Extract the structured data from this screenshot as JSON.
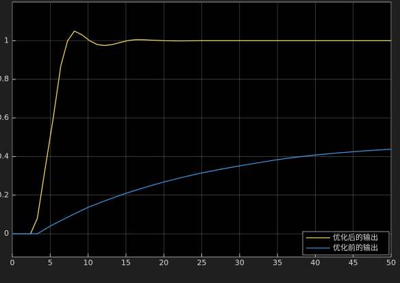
{
  "chart_data": {
    "type": "line",
    "xlim": [
      0,
      50
    ],
    "ylim": [
      -0.12,
      1.2
    ],
    "xticks": [
      0,
      5,
      10,
      15,
      20,
      25,
      30,
      35,
      40,
      45,
      50
    ],
    "yticks": [
      0,
      0.2,
      0.4,
      0.6,
      0.8,
      1
    ],
    "grid": true,
    "legend": "lower right",
    "series": [
      {
        "name": "优化后的输出",
        "color": "#edd55a",
        "x": [
          0,
          2.4,
          3.3,
          4.3,
          5.4,
          6.4,
          7.3,
          8.2,
          9.2,
          10.2,
          11.2,
          12.2,
          13.2,
          14.2,
          15.2,
          16.2,
          17.2,
          18.2,
          20,
          22,
          25,
          30,
          40,
          50
        ],
        "values": [
          0,
          0,
          0.08,
          0.33,
          0.6,
          0.87,
          1.0,
          1.05,
          1.03,
          1.0,
          0.98,
          0.975,
          0.98,
          0.99,
          1.0,
          1.005,
          1.005,
          1.003,
          1.0,
          0.999,
          1.0,
          1.0,
          1.0,
          1.0
        ]
      },
      {
        "name": "优化前的输出",
        "color": "#3d8fd9",
        "x": [
          0,
          3.3,
          5,
          7.5,
          10,
          12.5,
          15,
          17.5,
          20,
          22.5,
          25,
          27.5,
          30,
          32.5,
          35,
          37.5,
          40,
          42.5,
          45,
          47.5,
          50
        ],
        "values": [
          0,
          0,
          0.04,
          0.09,
          0.137,
          0.175,
          0.21,
          0.24,
          0.268,
          0.293,
          0.315,
          0.334,
          0.352,
          0.368,
          0.384,
          0.397,
          0.408,
          0.417,
          0.425,
          0.432,
          0.438
        ]
      }
    ]
  }
}
